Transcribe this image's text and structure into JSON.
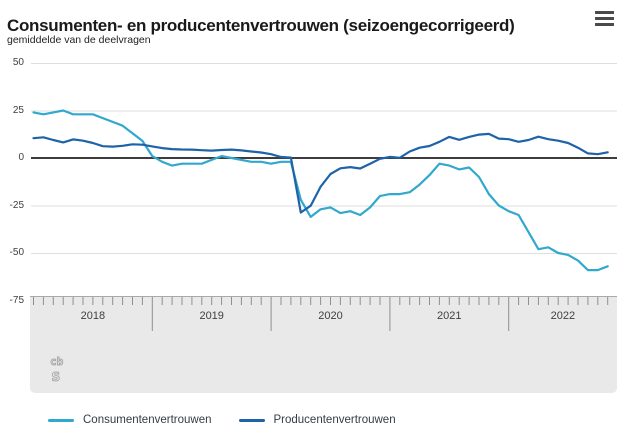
{
  "header": {
    "title": "Consumenten- en producentenvertrouwen (seizoengecorrigeerd)",
    "subtitle": "gemiddelde van de deelvragen",
    "menu_icon": "hamburger-menu-icon"
  },
  "colors": {
    "consumer_line": "#31a8cd",
    "producer_line": "#1e63a7",
    "zero_line": "#3d3d3d",
    "gridline": "#dedede",
    "axis_band_bg": "#e9e9e9",
    "axis_band_border": "#a9a9a9",
    "tick": "#8f8f8f",
    "label_text": "#3e3e3e",
    "logo_gray": "#a6a6a6"
  },
  "chart_data": {
    "type": "line",
    "title": "Consumenten- en producentenvertrouwen (seizoengecorrigeerd)",
    "subtitle": "gemiddelde van de deelvragen",
    "x_start": "2018-01",
    "x_end": "2022-11",
    "x_tick_labels": [
      "2018",
      "2019",
      "2020",
      "2021",
      "2022"
    ],
    "ylim": [
      -75,
      50
    ],
    "y_ticks": [
      50,
      25,
      0,
      -25,
      -50,
      -75
    ],
    "grid": true,
    "legend_position": "bottom",
    "series": [
      {
        "name": "Consumentenvertrouwen",
        "color": "#31a8cd",
        "values": [
          24,
          23,
          24,
          25,
          23,
          23,
          23,
          21,
          19,
          17,
          13,
          9,
          1,
          -2,
          -4,
          -3,
          -3,
          -3,
          -1,
          1,
          0,
          -1,
          -2,
          -2,
          -3,
          -2,
          -2,
          -22,
          -31,
          -27,
          -26,
          -29,
          -28,
          -30,
          -26,
          -20,
          -19,
          -19,
          -18,
          -14,
          -9,
          -3,
          -4,
          -6,
          -5,
          -10,
          -19,
          -25,
          -28,
          -30,
          -39,
          -48,
          -47,
          -50,
          -51,
          -54,
          -59,
          -59,
          -57
        ]
      },
      {
        "name": "Producentenvertrouwen",
        "color": "#1e63a7",
        "values": [
          10.4,
          10.9,
          9.5,
          8.2,
          9.8,
          9.1,
          7.9,
          6.2,
          6.0,
          6.4,
          7.2,
          7.0,
          6.1,
          5.2,
          4.7,
          4.5,
          4.4,
          4.1,
          3.9,
          4.2,
          4.4,
          4.0,
          3.4,
          2.9,
          2.0,
          0.5,
          0.2,
          -28.7,
          -25.1,
          -15.1,
          -8.4,
          -5.4,
          -4.8,
          -5.5,
          -3.0,
          -0.4,
          0.6,
          0.1,
          3.4,
          5.4,
          6.3,
          8.5,
          11.1,
          9.6,
          11.1,
          12.3,
          12.7,
          10.2,
          9.9,
          8.5,
          9.5,
          11.2,
          9.9,
          9.1,
          7.9,
          5.4,
          2.4,
          2.0,
          3.0
        ]
      }
    ]
  },
  "footer": {
    "logo_icon": "cbs-logo",
    "logo_letters": [
      "cb",
      "s"
    ]
  }
}
